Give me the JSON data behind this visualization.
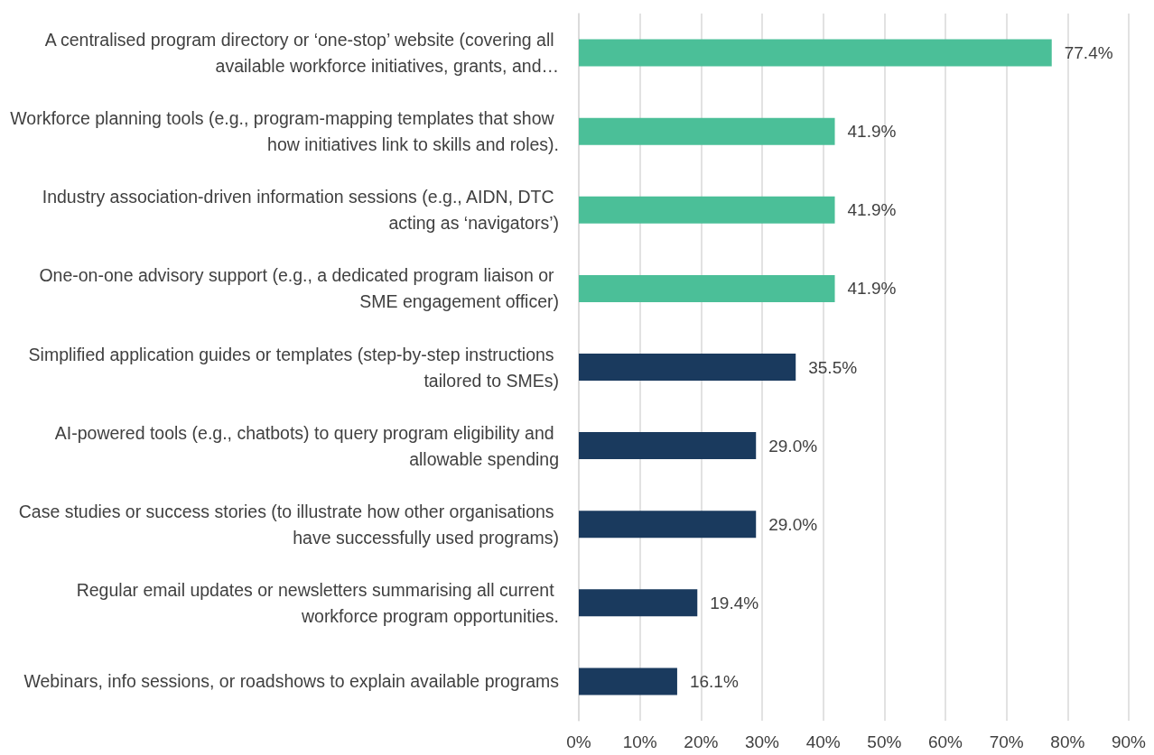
{
  "chart_data": {
    "type": "bar",
    "orientation": "horizontal",
    "categories": [
      "A centralised program directory or ‘one-stop’ website (covering all available workforce initiatives, grants, and…",
      "Workforce planning tools (e.g., program-mapping templates that show how initiatives link to skills and roles).",
      "Industry association-driven information sessions (e.g., AIDN, DTC acting as ‘navigators’)",
      "One-on-one advisory support (e.g., a dedicated program liaison or SME engagement officer)",
      "Simplified application guides or templates (step-by-step instructions tailored to SMEs)",
      "AI-powered tools (e.g., chatbots) to query program eligibility and allowable spending",
      "Case studies or success stories (to illustrate how other organisations have successfully used programs)",
      "Regular email updates or newsletters summarising all current workforce program opportunities.",
      "Webinars, info sessions, or roadshows to explain available programs"
    ],
    "values": [
      77.4,
      41.9,
      41.9,
      41.9,
      35.5,
      29.0,
      29.0,
      19.4,
      16.1
    ],
    "value_labels": [
      "77.4%",
      "41.9%",
      "41.9%",
      "41.9%",
      "35.5%",
      "29.0%",
      "29.0%",
      "19.4%",
      "16.1%"
    ],
    "colors": [
      "#4bbf98",
      "#4bbf98",
      "#4bbf98",
      "#4bbf98",
      "#1a3a5e",
      "#1a3a5e",
      "#1a3a5e",
      "#1a3a5e",
      "#1a3a5e"
    ],
    "xlim": [
      0,
      90
    ],
    "xticks": [
      {
        "value": 0,
        "label": "0%"
      },
      {
        "value": 10,
        "label": "10%"
      },
      {
        "value": 20,
        "label": "20%"
      },
      {
        "value": 30,
        "label": "30%"
      },
      {
        "value": 40,
        "label": "40%"
      },
      {
        "value": 50,
        "label": "50%"
      },
      {
        "value": 60,
        "label": "60%"
      },
      {
        "value": 70,
        "label": "70%"
      },
      {
        "value": 80,
        "label": "80%"
      },
      {
        "value": 90,
        "label": "90%"
      }
    ],
    "grid": "x"
  }
}
